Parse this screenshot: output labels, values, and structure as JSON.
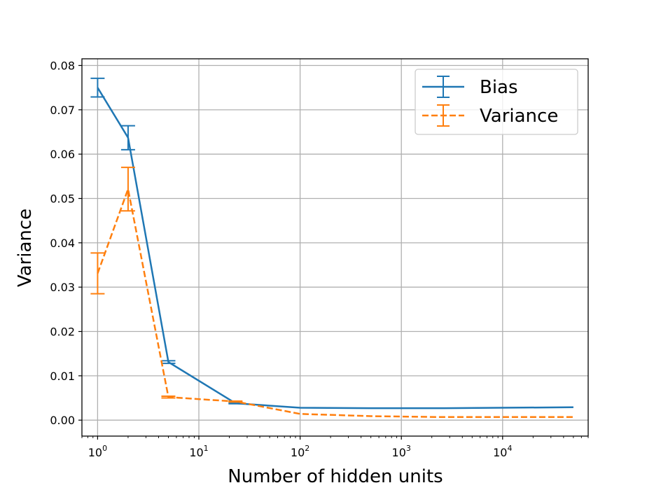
{
  "chart_data": {
    "type": "line",
    "title": "",
    "xlabel": "Number of hidden units",
    "ylabel": "Variance",
    "x_scale": "log",
    "xlim": [
      0.7,
      70000
    ],
    "ylim": [
      -0.0036,
      0.0815
    ],
    "grid": true,
    "legend_position": "top-right",
    "x_ticks": [
      {
        "value": 1,
        "base": "10",
        "exp": "0"
      },
      {
        "value": 10,
        "base": "10",
        "exp": "1"
      },
      {
        "value": 100,
        "base": "10",
        "exp": "2"
      },
      {
        "value": 1000,
        "base": "10",
        "exp": "3"
      },
      {
        "value": 10000,
        "base": "10",
        "exp": "4"
      }
    ],
    "y_ticks": [
      {
        "value": 0.0,
        "label": "0.00"
      },
      {
        "value": 0.01,
        "label": "0.01"
      },
      {
        "value": 0.02,
        "label": "0.02"
      },
      {
        "value": 0.03,
        "label": "0.03"
      },
      {
        "value": 0.04,
        "label": "0.04"
      },
      {
        "value": 0.05,
        "label": "0.05"
      },
      {
        "value": 0.06,
        "label": "0.06"
      },
      {
        "value": 0.07,
        "label": "0.07"
      },
      {
        "value": 0.08,
        "label": "0.08"
      }
    ],
    "series": [
      {
        "name": "Bias",
        "color": "#1f77b4",
        "linestyle": "solid",
        "x": [
          1,
          2,
          5,
          23,
          100,
          500,
          2500,
          50000
        ],
        "y": [
          0.075,
          0.0637,
          0.0131,
          0.0038,
          0.0028,
          0.0027,
          0.0027,
          0.0029
        ],
        "err": [
          0.0021,
          0.0027,
          0.0003,
          0.0001,
          0.0,
          0.0,
          0.0,
          0.0
        ]
      },
      {
        "name": "Variance",
        "color": "#ff7f0e",
        "linestyle": "dashed",
        "x": [
          1,
          2,
          5,
          23,
          100,
          500,
          2500,
          50000
        ],
        "y": [
          0.0331,
          0.0521,
          0.0052,
          0.0042,
          0.0014,
          0.0009,
          0.0007,
          0.0007
        ],
        "err": [
          0.0046,
          0.0049,
          0.0002,
          0.0001,
          0.0,
          0.0,
          0.0,
          0.0
        ]
      }
    ]
  }
}
